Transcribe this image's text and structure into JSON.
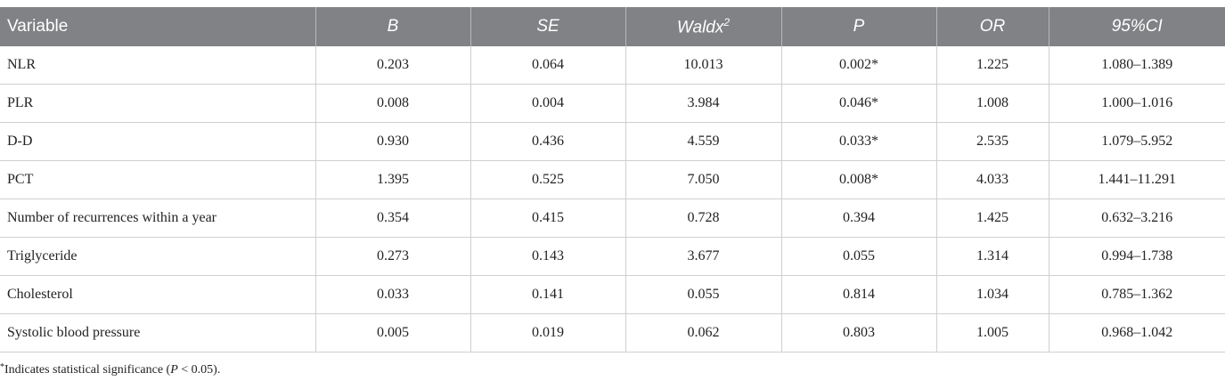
{
  "table": {
    "header": [
      "Variable",
      "B",
      "SE",
      {
        "text": "Waldx",
        "sup": "2"
      },
      "P",
      "OR",
      "95%CI"
    ],
    "rows": [
      [
        "NLR",
        "0.203",
        "0.064",
        "10.013",
        "0.002*",
        "1.225",
        "1.080–1.389"
      ],
      [
        "PLR",
        "0.008",
        "0.004",
        "3.984",
        "0.046*",
        "1.008",
        "1.000–1.016"
      ],
      [
        "D-D",
        "0.930",
        "0.436",
        "4.559",
        "0.033*",
        "2.535",
        "1.079–5.952"
      ],
      [
        "PCT",
        "1.395",
        "0.525",
        "7.050",
        "0.008*",
        "4.033",
        "1.441–11.291"
      ],
      [
        "Number of recurrences within a year",
        "0.354",
        "0.415",
        "0.728",
        "0.394",
        "1.425",
        "0.632–3.216"
      ],
      [
        "Triglyceride",
        "0.273",
        "0.143",
        "3.677",
        "0.055",
        "1.314",
        "0.994–1.738"
      ],
      [
        "Cholesterol",
        "0.033",
        "0.141",
        "0.055",
        "0.814",
        "1.034",
        "0.785–1.362"
      ],
      [
        "Systolic blood pressure",
        "0.005",
        "0.019",
        "0.062",
        "0.803",
        "1.005",
        "0.968–1.042"
      ]
    ],
    "footnote": [
      "*",
      "Indicates statistical significance (",
      "P",
      " < 0.05)."
    ]
  }
}
